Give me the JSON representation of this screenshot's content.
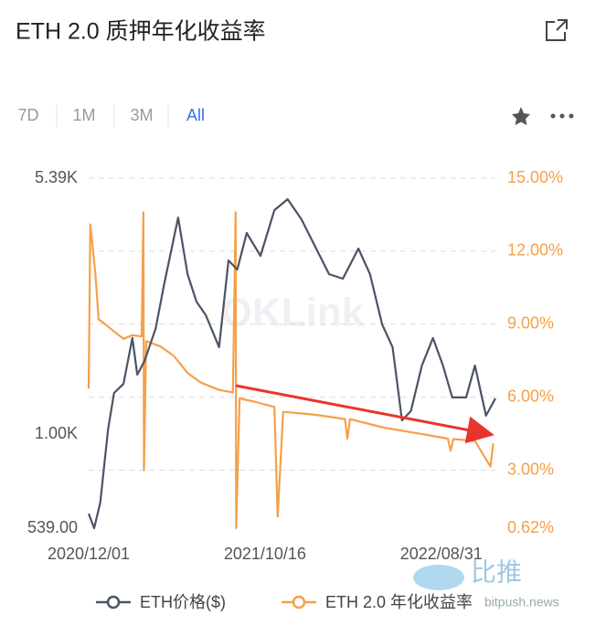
{
  "header": {
    "title": "ETH 2.0 质押年化收益率",
    "tabs": [
      "7D",
      "1M",
      "3M",
      "All"
    ],
    "active_tab": 3
  },
  "watermarks": [
    "OKLink",
    "比推",
    "bitpush.news"
  ],
  "chart_data": {
    "type": "line",
    "xlim": [
      "2020/12/01",
      "2022/12/07"
    ],
    "xticks": [
      "2020/12/01",
      "2021/10/16",
      "2022/08/31"
    ],
    "ylim": [
      539,
      5390
    ],
    "yscale": "log",
    "yticks": [
      {
        "value": 539,
        "label": "539.00"
      },
      {
        "value": 1000,
        "label": "1.00K"
      },
      {
        "value": 5390,
        "label": "5.39K"
      }
    ],
    "y2lim": [
      0.62,
      15
    ],
    "y2ticks": [
      {
        "value": 0.62,
        "label": "0.62%"
      },
      {
        "value": 3,
        "label": "3.00%"
      },
      {
        "value": 6,
        "label": "6.00%"
      },
      {
        "value": 9,
        "label": "9.00%"
      },
      {
        "value": 12,
        "label": "12.00%"
      },
      {
        "value": 15,
        "label": "15.00%"
      }
    ],
    "grid": true,
    "series": [
      {
        "name": "ETH价格($)",
        "color": "#4b5366",
        "x": [
          "2020/12/01",
          "2020/12/11",
          "2020/12/22",
          "2021/01/05",
          "2021/01/16",
          "2021/02/02",
          "2021/02/18",
          "2021/02/27",
          "2021/03/12",
          "2021/04/01",
          "2021/04/17",
          "2021/05/12",
          "2021/05/29",
          "2021/06/14",
          "2021/07/01",
          "2021/07/25",
          "2021/08/11",
          "2021/08/27",
          "2021/09/13",
          "2021/10/08",
          "2021/11/02",
          "2021/11/26",
          "2021/12/21",
          "2022/01/15",
          "2022/02/09",
          "2022/03/06",
          "2022/04/03",
          "2022/04/24",
          "2022/05/16",
          "2022/06/04",
          "2022/06/21",
          "2022/07/07",
          "2022/07/27",
          "2022/08/16",
          "2022/09/03",
          "2022/09/20",
          "2022/10/15",
          "2022/10/31",
          "2022/11/20",
          "2022/12/07"
        ],
        "values": [
          593,
          539,
          638,
          1032,
          1312,
          1393,
          1883,
          1480,
          1620,
          2000,
          2700,
          4160,
          2867,
          2394,
          2188,
          1773,
          3138,
          2954,
          3758,
          3234,
          4367,
          4694,
          4113,
          3434,
          2867,
          2782,
          3393,
          2867,
          2060,
          1773,
          1096,
          1164,
          1572,
          1883,
          1572,
          1274,
          1274,
          1572,
          1130,
          1266
        ]
      },
      {
        "name": "ETH 2.0 年化收益率",
        "color": "#f5a049",
        "axis": "y2",
        "x": [
          "2020/12/01",
          "2020/12/04",
          "2020/12/13",
          "2020/12/19",
          "2020/12/31",
          "2021/01/16",
          "2021/02/02",
          "2021/02/18",
          "2021/03/07",
          "2021/03/10",
          "2021/03/11",
          "2021/03/15",
          "2021/04/09",
          "2021/05/04",
          "2021/05/29",
          "2021/06/22",
          "2021/07/25",
          "2021/08/19",
          "2021/08/24",
          "2021/08/25",
          "2021/08/31",
          "2021/09/30",
          "2021/11/02",
          "2021/11/08",
          "2021/11/18",
          "2022/01/07",
          "2022/02/09",
          "2022/03/10",
          "2022/03/14",
          "2022/03/19",
          "2022/05/19",
          "2022/07/24",
          "2022/09/12",
          "2022/09/17",
          "2022/09/22",
          "2022/10/31",
          "2022/11/28",
          "2022/12/03"
        ],
        "values": [
          6.35,
          13.1,
          11.1,
          9.2,
          9.0,
          8.7,
          8.4,
          8.55,
          8.5,
          13.6,
          3.0,
          8.3,
          8.1,
          7.7,
          7.0,
          6.6,
          6.3,
          6.2,
          13.6,
          0.62,
          5.95,
          5.8,
          5.6,
          1.1,
          5.4,
          5.3,
          5.2,
          5.1,
          4.3,
          5.1,
          4.75,
          4.5,
          4.3,
          3.8,
          4.28,
          4.2,
          3.15,
          4.1
        ]
      }
    ]
  }
}
